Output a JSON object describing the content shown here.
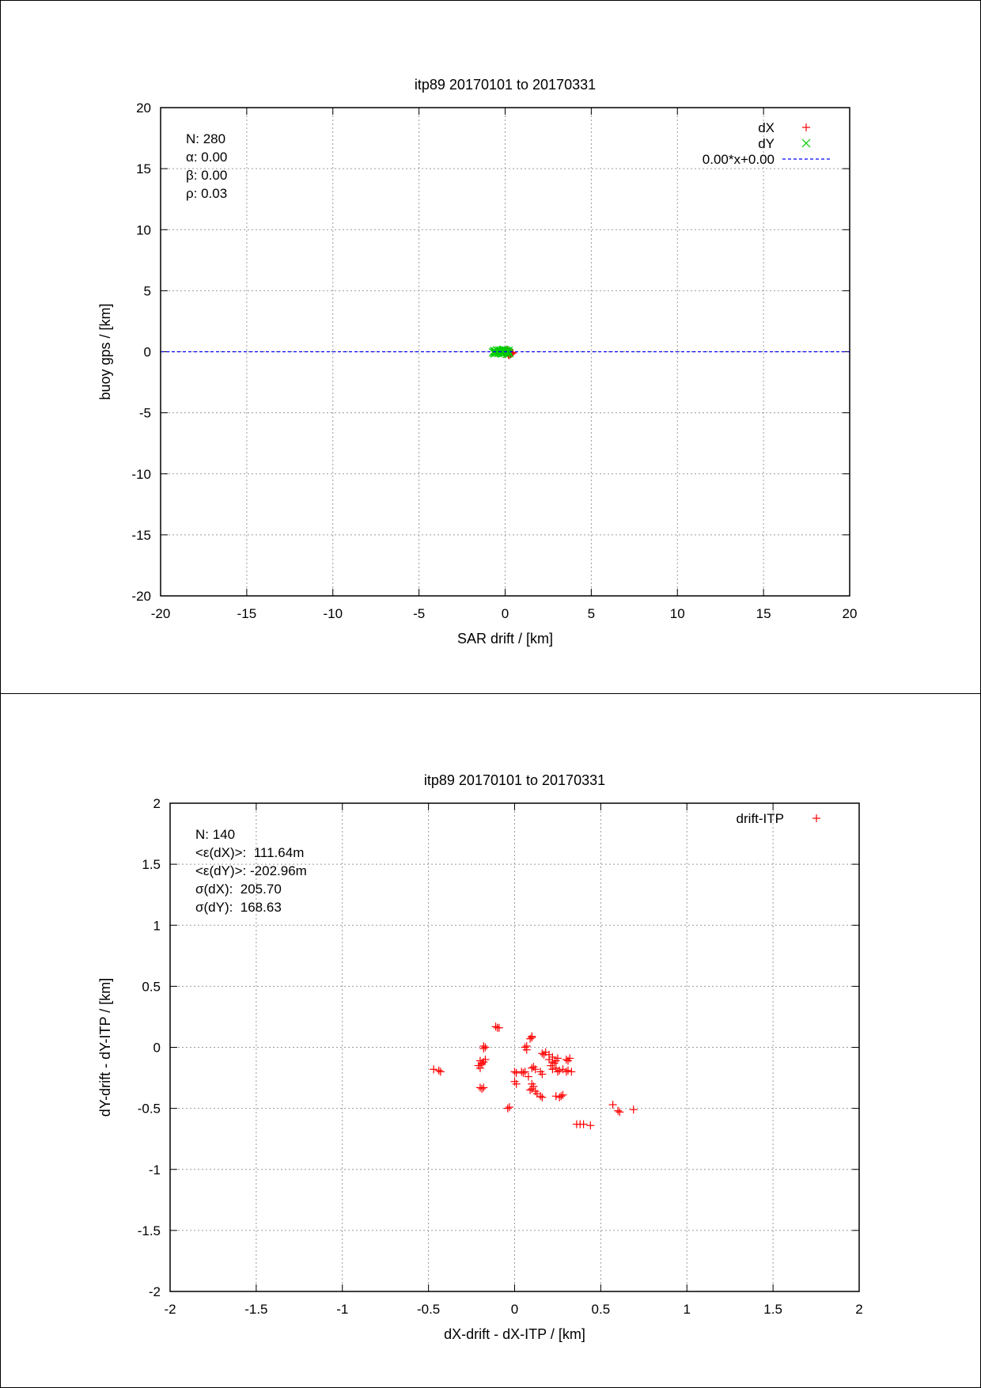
{
  "chart_data": [
    {
      "type": "scatter",
      "title": "itp89 20170101 to 20170331",
      "xlabel": "SAR drift / [km]",
      "ylabel": "buoy gps / [km]",
      "xlim": [
        -20,
        20
      ],
      "ylim": [
        -20,
        20
      ],
      "xticks": [
        -20,
        -15,
        -10,
        -5,
        0,
        5,
        10,
        15,
        20
      ],
      "yticks": [
        -20,
        -15,
        -10,
        -5,
        0,
        5,
        10,
        15,
        20
      ],
      "grid": true,
      "legend_position": "top-right",
      "stats": [
        "N: 280",
        "α: 0.00",
        "β: 0.00",
        "ρ: 0.03"
      ],
      "series": [
        {
          "name": "dX",
          "marker": "plus",
          "color": "#ff0000",
          "points": [
            [
              0.05,
              -0.08
            ],
            [
              0.12,
              -0.1
            ],
            [
              0.2,
              -0.05
            ],
            [
              0.25,
              -0.12
            ],
            [
              0.32,
              -0.1
            ],
            [
              0.4,
              -0.06
            ],
            [
              -0.05,
              -0.15
            ],
            [
              0.1,
              0.02
            ],
            [
              0.18,
              -0.2
            ],
            [
              0.28,
              0.0
            ],
            [
              0.35,
              -0.18
            ],
            [
              0.45,
              -0.1
            ],
            [
              0.22,
              -0.3
            ],
            [
              0.15,
              0.08
            ],
            [
              0.3,
              -0.22
            ]
          ]
        },
        {
          "name": "dY",
          "marker": "x",
          "color": "#00cc00",
          "points": [
            [
              -0.7,
              -0.05
            ],
            [
              -0.65,
              0.05
            ],
            [
              -0.6,
              -0.1
            ],
            [
              -0.55,
              0.02
            ],
            [
              -0.5,
              -0.08
            ],
            [
              -0.45,
              0.08
            ],
            [
              -0.4,
              -0.12
            ],
            [
              -0.35,
              0.1
            ],
            [
              -0.3,
              -0.04
            ],
            [
              -0.25,
              0.12
            ],
            [
              -0.2,
              -0.15
            ],
            [
              -0.15,
              0.06
            ],
            [
              -0.1,
              -0.1
            ],
            [
              -0.05,
              0.15
            ],
            [
              0.0,
              -0.06
            ],
            [
              0.05,
              0.1
            ],
            [
              0.1,
              -0.18
            ],
            [
              0.15,
              0.04
            ],
            [
              0.2,
              0.08
            ],
            [
              0.25,
              -0.12
            ],
            [
              -0.62,
              -0.14
            ],
            [
              -0.48,
              0.12
            ],
            [
              -0.38,
              0.0
            ],
            [
              -0.22,
              0.05
            ],
            [
              -0.08,
              -0.02
            ],
            [
              0.08,
              0.02
            ],
            [
              0.18,
              -0.08
            ],
            [
              -0.58,
              0.0
            ],
            [
              -0.12,
              0.16
            ],
            [
              0.02,
              0.06
            ]
          ]
        },
        {
          "name": "0.00*x+0.00",
          "type": "line",
          "style": "dashed",
          "color": "#0000ff",
          "slope": 0.0,
          "intercept": 0.0
        }
      ]
    },
    {
      "type": "scatter",
      "title": "itp89 20170101 to 20170331",
      "xlabel": "dX-drift - dX-ITP / [km]",
      "ylabel": "dY-drift - dY-ITP / [km]",
      "xlim": [
        -2,
        2
      ],
      "ylim": [
        -2,
        2
      ],
      "xticks": [
        -2,
        -1.5,
        -1,
        -0.5,
        0,
        0.5,
        1,
        1.5,
        2
      ],
      "yticks": [
        -2,
        -1.5,
        -1,
        -0.5,
        0,
        0.5,
        1,
        1.5,
        2
      ],
      "grid": true,
      "legend_position": "top-right",
      "stats": [
        "N: 140",
        "<ε(dX)>:  111.64m",
        "<ε(dY)>: -202.96m",
        "σ(dX):  205.70",
        "σ(dY):  168.63"
      ],
      "series": [
        {
          "name": "drift-ITP",
          "marker": "plus",
          "color": "#ff0000",
          "points": [
            [
              -0.47,
              -0.18
            ],
            [
              -0.44,
              -0.19
            ],
            [
              -0.43,
              -0.2
            ],
            [
              -0.2,
              -0.33
            ],
            [
              -0.18,
              -0.33
            ],
            [
              -0.19,
              -0.34
            ],
            [
              -0.2,
              -0.17
            ],
            [
              -0.21,
              -0.15
            ],
            [
              -0.19,
              -0.13
            ],
            [
              -0.18,
              -0.12
            ],
            [
              -0.2,
              -0.11
            ],
            [
              -0.17,
              -0.1
            ],
            [
              -0.19,
              -0.14
            ],
            [
              -0.18,
              0.01
            ],
            [
              -0.17,
              0.0
            ],
            [
              -0.18,
              -0.01
            ],
            [
              -0.1,
              0.16
            ],
            [
              -0.11,
              0.17
            ],
            [
              -0.09,
              0.16
            ],
            [
              -0.04,
              -0.5
            ],
            [
              -0.03,
              -0.49
            ],
            [
              0.0,
              -0.2
            ],
            [
              0.01,
              -0.21
            ],
            [
              0.0,
              -0.28
            ],
            [
              0.01,
              -0.3
            ],
            [
              0.04,
              -0.2
            ],
            [
              0.05,
              -0.21
            ],
            [
              0.06,
              -0.2
            ],
            [
              0.07,
              -0.02
            ],
            [
              0.06,
              0.0
            ],
            [
              0.07,
              0.01
            ],
            [
              0.09,
              0.07
            ],
            [
              0.1,
              0.08
            ],
            [
              0.1,
              0.09
            ],
            [
              0.08,
              -0.24
            ],
            [
              0.1,
              -0.3
            ],
            [
              0.11,
              -0.32
            ],
            [
              0.09,
              -0.35
            ],
            [
              0.12,
              -0.36
            ],
            [
              0.1,
              -0.34
            ],
            [
              0.13,
              -0.38
            ],
            [
              0.1,
              -0.17
            ],
            [
              0.11,
              -0.16
            ],
            [
              0.12,
              -0.18
            ],
            [
              0.16,
              -0.05
            ],
            [
              0.18,
              -0.04
            ],
            [
              0.17,
              -0.06
            ],
            [
              0.15,
              -0.2
            ],
            [
              0.16,
              -0.22
            ],
            [
              0.15,
              -0.4
            ],
            [
              0.16,
              -0.41
            ],
            [
              0.2,
              -0.1
            ],
            [
              0.22,
              -0.12
            ],
            [
              0.21,
              -0.15
            ],
            [
              0.23,
              -0.13
            ],
            [
              0.24,
              -0.11
            ],
            [
              0.22,
              -0.08
            ],
            [
              0.2,
              -0.06
            ],
            [
              0.25,
              -0.09
            ],
            [
              0.22,
              -0.18
            ],
            [
              0.24,
              -0.17
            ],
            [
              0.26,
              -0.19
            ],
            [
              0.28,
              -0.18
            ],
            [
              0.25,
              -0.2
            ],
            [
              0.24,
              -0.4
            ],
            [
              0.26,
              -0.41
            ],
            [
              0.28,
              -0.39
            ],
            [
              0.27,
              -0.4
            ],
            [
              0.3,
              -0.1
            ],
            [
              0.31,
              -0.11
            ],
            [
              0.32,
              -0.09
            ],
            [
              0.3,
              -0.2
            ],
            [
              0.31,
              -0.19
            ],
            [
              0.33,
              -0.2
            ],
            [
              0.36,
              -0.63
            ],
            [
              0.38,
              -0.63
            ],
            [
              0.4,
              -0.63
            ],
            [
              0.44,
              -0.64
            ],
            [
              0.57,
              -0.47
            ],
            [
              0.6,
              -0.52
            ],
            [
              0.61,
              -0.53
            ],
            [
              0.69,
              -0.51
            ]
          ]
        }
      ]
    }
  ]
}
